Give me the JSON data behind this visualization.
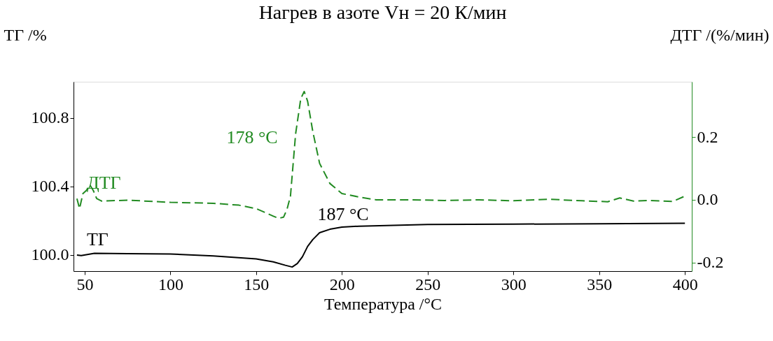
{
  "chart_data": {
    "type": "line",
    "title": "Нагрев в азоте Vн = 20 К/мин",
    "xlabel": "Температура /°С",
    "ylabel": "ТГ /%",
    "y2label": "ДТГ /(%/мин)",
    "xlim": [
      43.5,
      404
    ],
    "xticks": [
      50,
      100,
      150,
      200,
      250,
      300,
      350,
      400
    ],
    "ylim": [
      99.906,
      101.01
    ],
    "yticks": [
      {
        "value": 100,
        "label": "100.0"
      },
      100.4,
      100.8
    ],
    "y2lim": [
      -0.227,
      0.376
    ],
    "y2ticks": [
      -0.2,
      {
        "value": 0,
        "label": "0.0"
      },
      0.2
    ],
    "grid": false,
    "series": [
      {
        "name": "ТГ",
        "color": "#000000",
        "line_style": "solid",
        "x": [
          45.5,
          48,
          55.7,
          75,
          100,
          125,
          150,
          160,
          167,
          171,
          174,
          177,
          180,
          183,
          187,
          193,
          200,
          210,
          230,
          250,
          300,
          350,
          400
        ],
        "values": [
          100.0,
          99.997,
          100.01,
          100.008,
          100.006,
          99.995,
          99.977,
          99.96,
          99.94,
          99.93,
          99.95,
          99.99,
          100.05,
          100.09,
          100.13,
          100.15,
          100.163,
          100.168,
          100.173,
          100.178,
          100.18,
          100.182,
          100.185
        ]
      },
      {
        "name": "ДТГ",
        "color": "#228b22",
        "axis": "y2",
        "line_style": "dashed",
        "x": [
          45.5,
          47,
          49,
          51,
          53,
          55,
          57,
          60,
          75,
          100,
          125,
          140,
          150,
          155,
          160,
          163,
          166,
          168,
          170,
          173,
          176,
          178,
          180,
          183,
          187,
          193,
          200,
          210,
          220,
          240,
          260,
          280,
          300,
          320,
          340,
          355,
          362,
          370,
          380,
          393,
          400
        ],
        "values": [
          0.004,
          -0.028,
          0.02,
          0.03,
          0.048,
          0.03,
          0.004,
          -0.004,
          -0.001,
          -0.008,
          -0.011,
          -0.017,
          -0.028,
          -0.04,
          -0.052,
          -0.059,
          -0.055,
          -0.03,
          0.012,
          0.21,
          0.322,
          0.345,
          0.314,
          0.218,
          0.116,
          0.052,
          0.02,
          0.009,
          0.0,
          0.0,
          -0.002,
          0.0,
          -0.003,
          0.002,
          -0.003,
          -0.006,
          0.006,
          -0.004,
          -0.002,
          -0.005,
          0.012
        ]
      }
    ],
    "annotations": [
      "178 °С",
      "187 °С"
    ]
  }
}
